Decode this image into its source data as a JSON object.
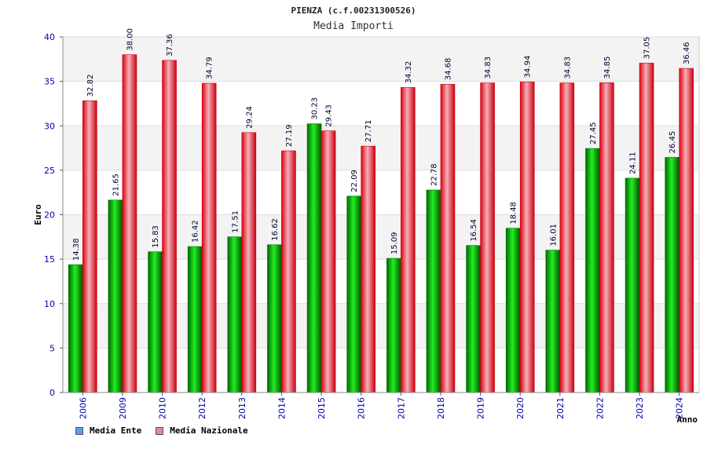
{
  "chart_data": {
    "type": "bar",
    "title": "PIENZA (c.f.00231300526)",
    "subtitle": "Media Importi",
    "xlabel": "Anno",
    "ylabel": "Euro",
    "ylim": [
      0,
      40
    ],
    "yticks": [
      0,
      5,
      10,
      15,
      20,
      25,
      30,
      35,
      40
    ],
    "categories": [
      "2006",
      "2009",
      "2010",
      "2012",
      "2013",
      "2014",
      "2015",
      "2016",
      "2017",
      "2018",
      "2019",
      "2020",
      "2021",
      "2022",
      "2023",
      "2024"
    ],
    "series": [
      {
        "name": "Media Ente",
        "color": "#00aa00",
        "legend_color": "#6699ee",
        "values": [
          14.38,
          21.65,
          15.83,
          16.42,
          17.51,
          16.62,
          30.23,
          22.09,
          15.09,
          22.78,
          16.54,
          18.48,
          16.01,
          27.45,
          24.11,
          26.45
        ],
        "labels": [
          "14.38",
          "21.65",
          "15.83",
          "16.42",
          "17.51",
          "16.62",
          "30.23",
          "22.09",
          "15.09",
          "22.78",
          "16.54",
          "18.48",
          "16.01",
          "27.45",
          "24.11",
          "26.45"
        ]
      },
      {
        "name": "Media Nazionale",
        "color": "#ee1122",
        "legend_color": "#dd88aa",
        "values": [
          32.82,
          38.0,
          37.36,
          34.79,
          29.24,
          27.19,
          29.43,
          27.71,
          34.32,
          34.68,
          34.83,
          34.94,
          34.83,
          34.85,
          37.05,
          36.46
        ],
        "labels": [
          "32.82",
          "38.00",
          "37.36",
          "34.79",
          "29.24",
          "27.19",
          "29.43",
          "27.71",
          "34.32",
          "34.68",
          "34.83",
          "34.94",
          "34.83",
          "34.85",
          "37.05",
          "36.46"
        ]
      }
    ],
    "grid": true
  }
}
